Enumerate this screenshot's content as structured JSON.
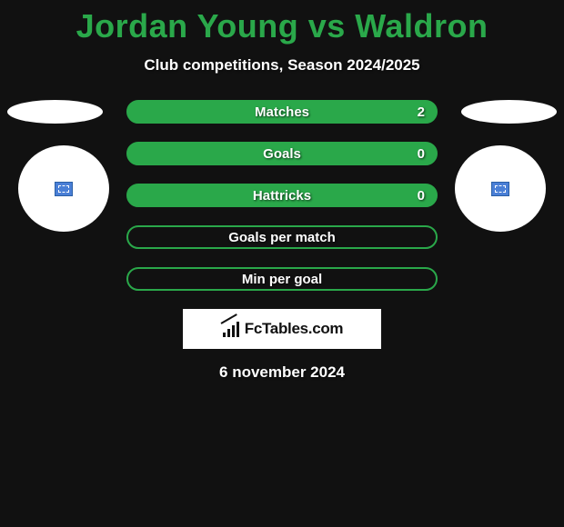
{
  "title": "Jordan Young vs Waldron",
  "subtitle": "Club competitions, Season 2024/2025",
  "bars": [
    {
      "label": "Matches",
      "value": "2",
      "filled": true,
      "show_value": true
    },
    {
      "label": "Goals",
      "value": "0",
      "filled": true,
      "show_value": true
    },
    {
      "label": "Hattricks",
      "value": "0",
      "filled": true,
      "show_value": true
    },
    {
      "label": "Goals per match",
      "value": "",
      "filled": false,
      "show_value": false
    },
    {
      "label": "Min per goal",
      "value": "",
      "filled": false,
      "show_value": false
    }
  ],
  "logo_text": "FcTables.com",
  "date": "6 november 2024",
  "colors": {
    "background": "#111111",
    "accent": "#2aa84a",
    "text": "#ffffff",
    "logo_bg": "#ffffff"
  }
}
